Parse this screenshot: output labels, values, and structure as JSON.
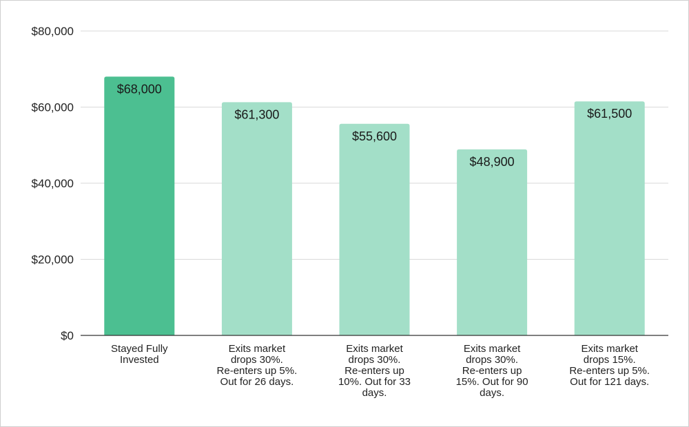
{
  "chart_data": {
    "type": "bar",
    "title": "",
    "xlabel": "",
    "ylabel": "",
    "ylim": [
      0,
      80000
    ],
    "yticks": [
      0,
      20000,
      40000,
      60000,
      80000
    ],
    "ytick_labels": [
      "$0",
      "$20,000",
      "$40,000",
      "$60,000",
      "$80,000"
    ],
    "grid": true,
    "legend": "none",
    "categories": [
      [
        "Stayed Fully",
        "Invested"
      ],
      [
        "Exits market",
        "drops 30%.",
        "Re-enters up 5%.",
        "Out for 26 days."
      ],
      [
        "Exits market",
        "drops 30%.",
        "Re-enters up",
        "10%. Out for 33",
        "days."
      ],
      [
        "Exits market",
        "drops 30%.",
        "Re-enters up",
        "15%. Out for 90",
        "days."
      ],
      [
        "Exits market",
        "drops 15%.",
        "Re-enters up 5%.",
        "Out for 121 days."
      ]
    ],
    "values": [
      68000,
      61300,
      55600,
      48900,
      61500
    ],
    "data_labels": [
      "$68,000",
      "$61,300",
      "$55,600",
      "$48,900",
      "$61,500"
    ],
    "colors": [
      "#4cbf91",
      "#a3dfc8",
      "#a3dfc8",
      "#a3dfc8",
      "#a3dfc8"
    ],
    "gridline_color": "#d9d9d9",
    "axis_color": "#333333"
  }
}
